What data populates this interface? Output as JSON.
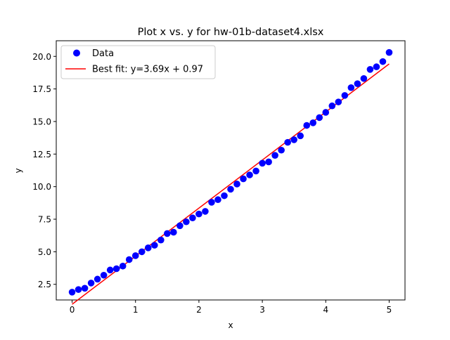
{
  "chart_data": {
    "type": "scatter",
    "title": "Plot x vs. y for hw-01b-dataset4.xlsx",
    "xlabel": "x",
    "ylabel": "y",
    "xlim": [
      -0.25,
      5.25
    ],
    "ylim": [
      1.3,
      21.2
    ],
    "xticks": [
      0,
      1,
      2,
      3,
      4,
      5
    ],
    "xtick_labels": [
      "0",
      "1",
      "2",
      "3",
      "4",
      "5"
    ],
    "yticks": [
      2.5,
      5.0,
      7.5,
      10.0,
      12.5,
      15.0,
      17.5,
      20.0
    ],
    "ytick_labels": [
      "2.5",
      "5.0",
      "7.5",
      "10.0",
      "12.5",
      "15.0",
      "17.5",
      "20.0"
    ],
    "grid": false,
    "legend_position": "top-left",
    "series": [
      {
        "name": "Data",
        "kind": "scatter",
        "color": "#0000ff",
        "x": [
          0.0,
          0.1,
          0.2,
          0.3,
          0.4,
          0.5,
          0.6,
          0.7,
          0.8,
          0.9,
          1.0,
          1.1,
          1.2,
          1.3,
          1.4,
          1.5,
          1.6,
          1.7,
          1.8,
          1.9,
          2.0,
          2.1,
          2.2,
          2.3,
          2.4,
          2.5,
          2.6,
          2.7,
          2.8,
          2.9,
          3.0,
          3.1,
          3.2,
          3.3,
          3.4,
          3.5,
          3.6,
          3.7,
          3.8,
          3.9,
          4.0,
          4.1,
          4.2,
          4.3,
          4.4,
          4.5,
          4.6,
          4.7,
          4.8,
          4.9,
          5.0
        ],
        "y": [
          1.9,
          2.1,
          2.2,
          2.6,
          2.9,
          3.2,
          3.6,
          3.7,
          3.9,
          4.4,
          4.7,
          5.0,
          5.3,
          5.5,
          5.9,
          6.4,
          6.5,
          7.0,
          7.3,
          7.6,
          7.9,
          8.1,
          8.8,
          9.0,
          9.3,
          9.8,
          10.2,
          10.6,
          10.9,
          11.2,
          11.8,
          11.9,
          12.4,
          12.8,
          13.4,
          13.6,
          13.9,
          14.7,
          14.9,
          15.3,
          15.7,
          16.2,
          16.5,
          17.0,
          17.6,
          17.9,
          18.3,
          19.0,
          19.2,
          19.6,
          20.3
        ]
      },
      {
        "name": "Best fit: y=3.69x + 0.97",
        "kind": "line",
        "color": "#ff0000",
        "slope": 3.69,
        "intercept": 0.97,
        "x": [
          0,
          5
        ]
      }
    ]
  }
}
